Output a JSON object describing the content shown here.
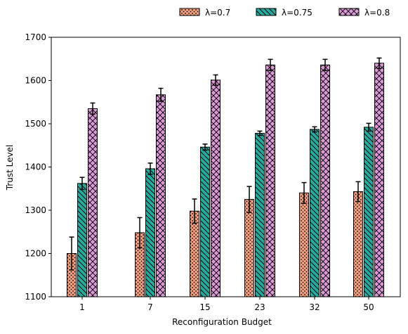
{
  "chart_data": {
    "type": "bar",
    "categories": [
      "1",
      "7",
      "15",
      "23",
      "32",
      "50"
    ],
    "series": [
      {
        "name": "λ=0.7",
        "color": "#f4a07f",
        "hatch": "dots",
        "values": [
          1200,
          1248,
          1298,
          1325,
          1340,
          1343
        ],
        "errors": [
          38,
          35,
          28,
          30,
          24,
          23
        ]
      },
      {
        "name": "λ=0.75",
        "color": "#22ada0",
        "hatch": "diagonal",
        "values": [
          1362,
          1396,
          1446,
          1478,
          1487,
          1492
        ],
        "errors": [
          14,
          13,
          7,
          5,
          6,
          9
        ]
      },
      {
        "name": "λ=0.8",
        "color": "#dc9ad8",
        "hatch": "crosshatch",
        "values": [
          1535,
          1567,
          1601,
          1636,
          1636,
          1640
        ],
        "errors": [
          13,
          15,
          12,
          13,
          13,
          12
        ]
      }
    ],
    "xlabel": "Reconfiguration Budget",
    "ylabel": "Trust Level",
    "ylim": [
      1100,
      1700
    ],
    "yticks": [
      "1100",
      "1200",
      "1300",
      "1400",
      "1500",
      "1600",
      "1700"
    ],
    "grid": false,
    "legend_position": "top-center"
  }
}
